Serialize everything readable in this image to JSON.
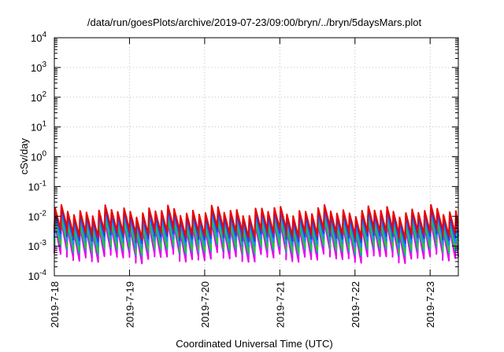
{
  "chart_data": {
    "type": "line",
    "title": "/data/run/goesPlots/archive/2019-07-23/09:00/bryn/../bryn/5daysMars.plot",
    "xlabel": "Coordinated Universal Time (UTC)",
    "ylabel": "cSv/day",
    "yscale": "log",
    "ylim": [
      0.0001,
      10000
    ],
    "xlim": [
      "2019-07-18",
      "2019-07-23T09:00"
    ],
    "x_tick_labels": [
      "2019-7-18",
      "2019-7-19",
      "2019-7-20",
      "2019-7-21",
      "2019-7-22",
      "2019-7-23"
    ],
    "y_tick_labels": [
      {
        "base": "10",
        "exp": "-4"
      },
      {
        "base": "10",
        "exp": "-3"
      },
      {
        "base": "10",
        "exp": "-2"
      },
      {
        "base": "10",
        "exp": "-1"
      },
      {
        "base": "10",
        "exp": "0"
      },
      {
        "base": "10",
        "exp": "1"
      },
      {
        "base": "10",
        "exp": "2"
      },
      {
        "base": "10",
        "exp": "3"
      },
      {
        "base": "10",
        "exp": "4"
      }
    ],
    "grid": true,
    "legend": "none",
    "pattern": "sawtooth",
    "sawtooth_period_hours": 2,
    "series": [
      {
        "color": "#ee00ee",
        "peak": 0.004,
        "trough": 0.00045
      },
      {
        "color": "#00aaaa",
        "peak": 0.005,
        "trough": 0.0008
      },
      {
        "color": "#22cc22",
        "peak": 0.006,
        "trough": 0.001
      },
      {
        "color": "#2288ff",
        "peak": 0.008,
        "trough": 0.0015
      },
      {
        "color": "#2244dd",
        "peak": 0.011,
        "trough": 0.0022
      },
      {
        "color": "#ee0000",
        "peak": 0.015,
        "trough": 0.003
      }
    ]
  }
}
